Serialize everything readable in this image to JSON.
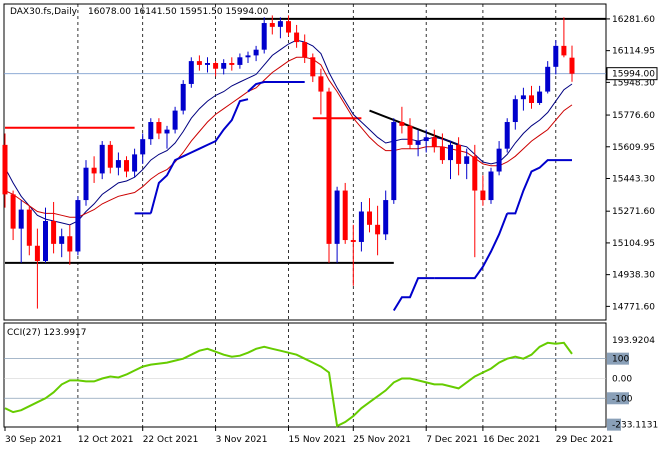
{
  "header": {
    "symbol": "DAX30.fs,Daily",
    "ohlc": "16078.00 16141.50 15951.50 15994.00"
  },
  "chart_data": [
    {
      "type": "candlestick",
      "title": "DAX30.fs,Daily",
      "ylim": [
        14700,
        16360
      ],
      "price_ticks": [
        "16281.60",
        "16114.95",
        "15948.30",
        "15776.60",
        "15609.95",
        "15443.30",
        "15271.60",
        "15104.95",
        "14938.30",
        "14771.60"
      ],
      "current_price_label": "15994.00",
      "x_labels": [
        "30 Sep 2021",
        "12 Oct 2021",
        "22 Oct 2021",
        "3 Nov 2021",
        "15 Nov 2021",
        "25 Nov 2021",
        "7 Dec 2021",
        "16 Dec 2021",
        "29 Dec 2021"
      ],
      "x_label_index": [
        0,
        9,
        17,
        26,
        35,
        43,
        52,
        59,
        68
      ],
      "candles": [
        {
          "o": 15620,
          "h": 15680,
          "l": 15290,
          "c": 15360
        },
        {
          "o": 15360,
          "h": 15380,
          "l": 15120,
          "c": 15180
        },
        {
          "o": 15180,
          "h": 15330,
          "l": 15000,
          "c": 15280
        },
        {
          "o": 15280,
          "h": 15300,
          "l": 15040,
          "c": 15090
        },
        {
          "o": 15090,
          "h": 15180,
          "l": 14760,
          "c": 15010
        },
        {
          "o": 15010,
          "h": 15290,
          "l": 15000,
          "c": 15220
        },
        {
          "o": 15220,
          "h": 15320,
          "l": 15050,
          "c": 15100
        },
        {
          "o": 15100,
          "h": 15180,
          "l": 15030,
          "c": 15140
        },
        {
          "o": 15140,
          "h": 15200,
          "l": 14990,
          "c": 15060
        },
        {
          "o": 15060,
          "h": 15350,
          "l": 15040,
          "c": 15330
        },
        {
          "o": 15330,
          "h": 15540,
          "l": 15300,
          "c": 15500
        },
        {
          "o": 15500,
          "h": 15560,
          "l": 15420,
          "c": 15470
        },
        {
          "o": 15470,
          "h": 15640,
          "l": 15440,
          "c": 15620
        },
        {
          "o": 15620,
          "h": 15640,
          "l": 15470,
          "c": 15500
        },
        {
          "o": 15500,
          "h": 15580,
          "l": 15460,
          "c": 15540
        },
        {
          "o": 15540,
          "h": 15560,
          "l": 15450,
          "c": 15480
        },
        {
          "o": 15480,
          "h": 15600,
          "l": 15450,
          "c": 15570
        },
        {
          "o": 15570,
          "h": 15680,
          "l": 15520,
          "c": 15650
        },
        {
          "o": 15650,
          "h": 15760,
          "l": 15620,
          "c": 15740
        },
        {
          "o": 15740,
          "h": 15760,
          "l": 15650,
          "c": 15680
        },
        {
          "o": 15680,
          "h": 15720,
          "l": 15600,
          "c": 15700
        },
        {
          "o": 15700,
          "h": 15820,
          "l": 15680,
          "c": 15800
        },
        {
          "o": 15800,
          "h": 15960,
          "l": 15780,
          "c": 15940
        },
        {
          "o": 15940,
          "h": 16080,
          "l": 15920,
          "c": 16060
        },
        {
          "o": 16060,
          "h": 16090,
          "l": 16010,
          "c": 16040
        },
        {
          "o": 16040,
          "h": 16080,
          "l": 16000,
          "c": 16050
        },
        {
          "o": 16050,
          "h": 16060,
          "l": 15980,
          "c": 16020
        },
        {
          "o": 16020,
          "h": 16070,
          "l": 15990,
          "c": 16050
        },
        {
          "o": 16050,
          "h": 16080,
          "l": 16010,
          "c": 16040
        },
        {
          "o": 16040,
          "h": 16100,
          "l": 16020,
          "c": 16080
        },
        {
          "o": 16080,
          "h": 16110,
          "l": 16050,
          "c": 16090
        },
        {
          "o": 16090,
          "h": 16140,
          "l": 16060,
          "c": 16120
        },
        {
          "o": 16120,
          "h": 16290,
          "l": 16100,
          "c": 16260
        },
        {
          "o": 16260,
          "h": 16300,
          "l": 16200,
          "c": 16240
        },
        {
          "o": 16240,
          "h": 16290,
          "l": 16180,
          "c": 16270
        },
        {
          "o": 16270,
          "h": 16300,
          "l": 16190,
          "c": 16210
        },
        {
          "o": 16210,
          "h": 16250,
          "l": 16130,
          "c": 16160
        },
        {
          "o": 16160,
          "h": 16200,
          "l": 16050,
          "c": 16080
        },
        {
          "o": 16080,
          "h": 16100,
          "l": 15950,
          "c": 15980
        },
        {
          "o": 15980,
          "h": 16020,
          "l": 15780,
          "c": 15900
        },
        {
          "o": 15900,
          "h": 15920,
          "l": 15000,
          "c": 15100
        },
        {
          "o": 15100,
          "h": 15400,
          "l": 15000,
          "c": 15380
        },
        {
          "o": 15380,
          "h": 15420,
          "l": 15100,
          "c": 15120
        },
        {
          "o": 15120,
          "h": 15200,
          "l": 14880,
          "c": 15110
        },
        {
          "o": 15110,
          "h": 15320,
          "l": 15060,
          "c": 15270
        },
        {
          "o": 15270,
          "h": 15340,
          "l": 15160,
          "c": 15200
        },
        {
          "o": 15200,
          "h": 15300,
          "l": 15040,
          "c": 15150
        },
        {
          "o": 15150,
          "h": 15380,
          "l": 15120,
          "c": 15330
        },
        {
          "o": 15330,
          "h": 15760,
          "l": 15310,
          "c": 15740
        },
        {
          "o": 15740,
          "h": 15820,
          "l": 15680,
          "c": 15720
        },
        {
          "o": 15720,
          "h": 15760,
          "l": 15600,
          "c": 15620
        },
        {
          "o": 15620,
          "h": 15700,
          "l": 15560,
          "c": 15640
        },
        {
          "o": 15640,
          "h": 15700,
          "l": 15580,
          "c": 15660
        },
        {
          "o": 15660,
          "h": 15700,
          "l": 15580,
          "c": 15610
        },
        {
          "o": 15610,
          "h": 15680,
          "l": 15520,
          "c": 15540
        },
        {
          "o": 15540,
          "h": 15640,
          "l": 15440,
          "c": 15620
        },
        {
          "o": 15620,
          "h": 15660,
          "l": 15460,
          "c": 15520
        },
        {
          "o": 15520,
          "h": 15600,
          "l": 15440,
          "c": 15560
        },
        {
          "o": 15560,
          "h": 15620,
          "l": 15030,
          "c": 15380
        },
        {
          "o": 15380,
          "h": 15460,
          "l": 15300,
          "c": 15330
        },
        {
          "o": 15330,
          "h": 15500,
          "l": 15310,
          "c": 15480
        },
        {
          "o": 15480,
          "h": 15640,
          "l": 15460,
          "c": 15600
        },
        {
          "o": 15600,
          "h": 15760,
          "l": 15580,
          "c": 15740
        },
        {
          "o": 15740,
          "h": 15880,
          "l": 15700,
          "c": 15860
        },
        {
          "o": 15860,
          "h": 15920,
          "l": 15800,
          "c": 15880
        },
        {
          "o": 15880,
          "h": 15930,
          "l": 15810,
          "c": 15840
        },
        {
          "o": 15840,
          "h": 15930,
          "l": 15830,
          "c": 15900
        },
        {
          "o": 15900,
          "h": 16060,
          "l": 15890,
          "c": 16030
        },
        {
          "o": 16030,
          "h": 16170,
          "l": 15990,
          "c": 16140
        },
        {
          "o": 16140,
          "h": 16290,
          "l": 16080,
          "c": 16090
        },
        {
          "o": 16078,
          "h": 16141.5,
          "l": 15951.5,
          "c": 15994
        }
      ],
      "ema_black": [
        15500,
        15420,
        15350,
        15300,
        15250,
        15230,
        15220,
        15210,
        15200,
        15220,
        15270,
        15310,
        15360,
        15390,
        15420,
        15430,
        15450,
        15490,
        15540,
        15570,
        15590,
        15630,
        15690,
        15760,
        15810,
        15850,
        15880,
        15900,
        15930,
        15950,
        15970,
        15990,
        16040,
        16090,
        16120,
        16150,
        16170,
        16160,
        16140,
        16100,
        16000,
        15920,
        15850,
        15780,
        15740,
        15700,
        15660,
        15630,
        15640,
        15650,
        15650,
        15640,
        15650,
        15660,
        15650,
        15640,
        15620,
        15610,
        15570,
        15530,
        15520,
        15530,
        15570,
        15630,
        15680,
        15720,
        15750,
        15790,
        15850,
        15910,
        15940
      ],
      "ema_red": [
        15380,
        15360,
        15330,
        15300,
        15270,
        15260,
        15260,
        15250,
        15240,
        15240,
        15260,
        15280,
        15310,
        15330,
        15350,
        15360,
        15370,
        15400,
        15440,
        15470,
        15490,
        15530,
        15580,
        15640,
        15690,
        15740,
        15780,
        15810,
        15840,
        15870,
        15900,
        15920,
        15960,
        16000,
        16030,
        16060,
        16080,
        16080,
        16070,
        16040,
        15960,
        15900,
        15830,
        15760,
        15710,
        15660,
        15620,
        15590,
        15590,
        15600,
        15600,
        15600,
        15610,
        15610,
        15610,
        15600,
        15590,
        15580,
        15550,
        15520,
        15510,
        15510,
        15530,
        15560,
        15600,
        15640,
        15670,
        15700,
        15750,
        15800,
        15830
      ],
      "blue_trend_segments": [
        {
          "from": 16,
          "to": 18,
          "values": [
            15260,
            15260,
            15260
          ]
        },
        {
          "from": 18,
          "to": 30,
          "values": [
            15260,
            15420,
            15460,
            15540,
            15560,
            15580,
            15600,
            15620,
            15640,
            15700,
            15750,
            15850,
            15860
          ]
        },
        {
          "from": 30,
          "to": 37,
          "values": [
            15900,
            15940,
            15950,
            15950,
            15950,
            15950,
            15950,
            15950
          ]
        },
        {
          "from": 48,
          "to": 53,
          "values": [
            14750,
            14820,
            14820,
            14920,
            14920,
            14920
          ]
        },
        {
          "from": 53,
          "to": 62,
          "values": [
            14920,
            14920,
            14920,
            14920,
            14920,
            14920,
            14980,
            15060,
            15150,
            15260
          ]
        },
        {
          "from": 62,
          "to": 70,
          "values": [
            15260,
            15260,
            15380,
            15480,
            15500,
            15540,
            15540,
            15540,
            15540
          ]
        }
      ],
      "horizontal_lines": [
        {
          "y": 16281.6,
          "from": 29,
          "to": 76,
          "color": "#000000"
        },
        {
          "y": 15710,
          "from": 0,
          "to": 16,
          "color": "#ff0000"
        },
        {
          "y": 15000,
          "from": 0,
          "to": 48,
          "color": "#000000"
        },
        {
          "y": 15760,
          "from": 38,
          "to": 44,
          "color": "#ff0000"
        }
      ],
      "trend_line": {
        "from": [
          45,
          15800
        ],
        "to": [
          56,
          15620
        ]
      }
    },
    {
      "type": "line",
      "title": "CCI(27) 123.9917",
      "ylim": [
        -245,
        280
      ],
      "y_ticks": [
        "193.9204",
        "100",
        "0.00",
        "-100",
        "-233.1131"
      ],
      "values": [
        -150,
        -170,
        -160,
        -140,
        -120,
        -100,
        -70,
        -30,
        -10,
        -10,
        -15,
        -15,
        0,
        10,
        5,
        20,
        40,
        60,
        70,
        75,
        80,
        90,
        100,
        120,
        140,
        150,
        135,
        120,
        110,
        115,
        130,
        150,
        160,
        150,
        140,
        130,
        120,
        100,
        80,
        60,
        30,
        -240,
        -220,
        -190,
        -150,
        -120,
        -90,
        -60,
        -20,
        0,
        0,
        -10,
        -20,
        -30,
        -30,
        -40,
        -50,
        -20,
        10,
        30,
        50,
        80,
        100,
        110,
        100,
        120,
        160,
        180,
        175,
        180,
        124
      ]
    }
  ],
  "colors": {
    "candle_up": "#0000cc",
    "candle_down": "#ff0000",
    "ema_black": "#000080",
    "ema_red": "#cc0000",
    "blue_trend": "#0000cc",
    "cci": "#66cc00",
    "grid": "#000000",
    "current_price_line": "#7f9fcf"
  }
}
